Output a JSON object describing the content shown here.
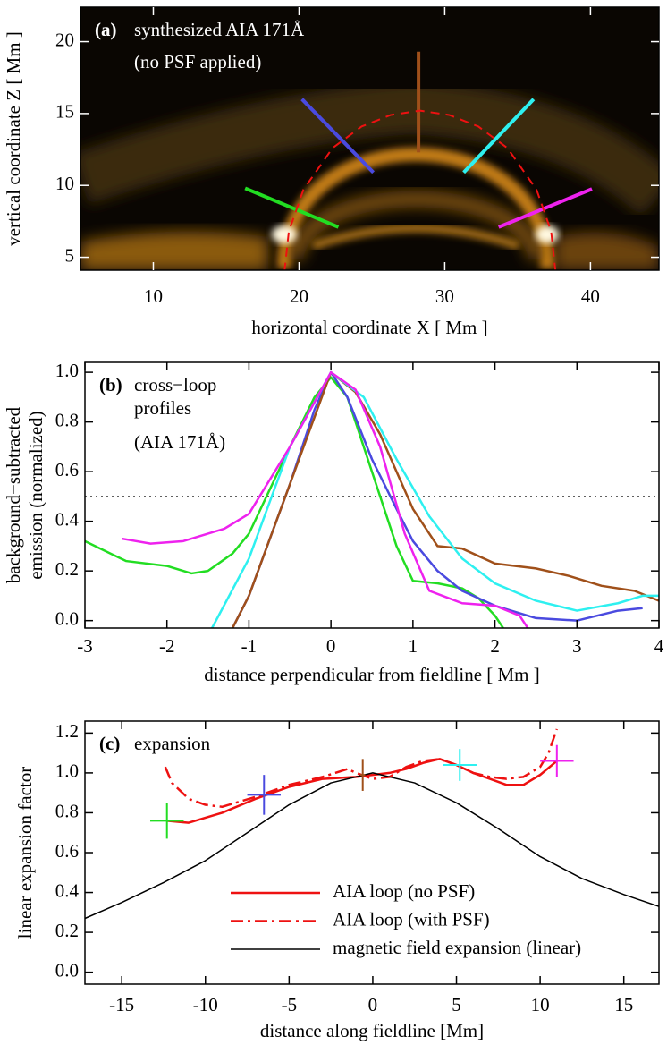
{
  "chart_data": [
    {
      "type": "image",
      "label": "(a)",
      "title": "synthesized AIA 171Å",
      "subtitle": "(no PSF applied)",
      "xlabel": "horizontal coordinate  X  [ Mm ]",
      "ylabel": "vertical coordinate  Z  [ Mm ]",
      "xlim": [
        5,
        44.7
      ],
      "ylim": [
        4.1,
        22.4
      ],
      "xticks": [
        10,
        20,
        30,
        40
      ],
      "yticks": [
        5,
        10,
        15,
        20
      ],
      "loop": {
        "color": "#ee1111",
        "style": "dashed",
        "x": [
          19.0,
          19.3,
          20.3,
          22.3,
          24.3,
          26.3,
          28.3,
          30.3,
          32.3,
          34.3,
          36.3,
          37.3,
          37.6
        ],
        "y": [
          4.0,
          6.8,
          9.7,
          12.6,
          14.1,
          14.9,
          15.2,
          14.9,
          14.1,
          12.6,
          9.7,
          6.8,
          4.0
        ]
      },
      "cuts": [
        {
          "color": "#22dd22",
          "x": [
            16.3,
            22.7
          ],
          "y": [
            9.8,
            7.1
          ]
        },
        {
          "color": "#4a4adf",
          "x": [
            20.2,
            25.1
          ],
          "y": [
            16.0,
            10.9
          ]
        },
        {
          "color": "#a0501a",
          "x": [
            28.2,
            28.2
          ],
          "y": [
            19.3,
            12.3
          ]
        },
        {
          "color": "#2ef0f0",
          "x": [
            36.1,
            31.3
          ],
          "y": [
            16.0,
            10.9
          ]
        },
        {
          "color": "#ee22ee",
          "x": [
            33.7,
            40.1
          ],
          "y": [
            7.1,
            9.75
          ]
        }
      ]
    },
    {
      "type": "line",
      "label": "(b)",
      "title": [
        "cross−loop",
        "profiles",
        "(AIA 171Å)"
      ],
      "xlabel": "distance perpendicular from fieldline  [ Mm ]",
      "ylabel": [
        "background−subtracted",
        "emission (normalized)"
      ],
      "xlim": [
        -3,
        4
      ],
      "ylim": [
        -0.03,
        1.04
      ],
      "xticks": [
        -3,
        -2,
        -1,
        0,
        1,
        2,
        3,
        4
      ],
      "yticks": [
        {
          "value": 0,
          "label": "0.0"
        },
        {
          "value": 0.2,
          "label": "0.2"
        },
        {
          "value": 0.4,
          "label": "0.4"
        },
        {
          "value": 0.6,
          "label": "0.6"
        },
        {
          "value": 0.8,
          "label": "0.8"
        },
        {
          "value": 1,
          "label": "1.0"
        }
      ],
      "hline": 0.5,
      "hline_style": "dotted",
      "series": [
        {
          "color": "#22dd22",
          "style": "solid",
          "x": [
            -3,
            -2.5,
            -2,
            -1.7,
            -1.5,
            -1.2,
            -1,
            -0.5,
            -0.2,
            0,
            0.2,
            0.5,
            0.8,
            1,
            1.3,
            1.6,
            1.8,
            2,
            2.1
          ],
          "values": [
            0.32,
            0.24,
            0.22,
            0.19,
            0.2,
            0.27,
            0.35,
            0.7,
            0.9,
            0.98,
            0.9,
            0.6,
            0.3,
            0.16,
            0.15,
            0.13,
            0.09,
            0.02,
            -0.03
          ]
        },
        {
          "color": "#4a4adf",
          "style": "solid",
          "x": [
            -1.2,
            -1,
            -0.5,
            -0.2,
            0,
            0.2,
            0.5,
            0.8,
            1,
            1.3,
            1.6,
            2,
            2.5,
            3,
            3.5,
            3.8
          ],
          "values": [
            -0.03,
            0.1,
            0.55,
            0.85,
            1.0,
            0.9,
            0.65,
            0.45,
            0.32,
            0.2,
            0.12,
            0.06,
            0.01,
            0.0,
            0.04,
            0.05
          ]
        },
        {
          "color": "#a0501a",
          "style": "solid",
          "x": [
            -1.2,
            -1,
            -0.5,
            0,
            0.3,
            0.6,
            1,
            1.3,
            1.6,
            2,
            2.5,
            2.9,
            3.3,
            3.7,
            4
          ],
          "values": [
            -0.03,
            0.1,
            0.55,
            1.0,
            0.92,
            0.75,
            0.45,
            0.3,
            0.29,
            0.23,
            0.21,
            0.18,
            0.14,
            0.12,
            0.08
          ]
        },
        {
          "color": "#2ef0f0",
          "style": "solid",
          "x": [
            -1.45,
            -1,
            -0.5,
            0,
            0.4,
            0.8,
            1.2,
            1.6,
            2,
            2.5,
            3,
            3.5,
            3.8,
            4
          ],
          "values": [
            -0.03,
            0.25,
            0.7,
            1.0,
            0.9,
            0.65,
            0.42,
            0.25,
            0.15,
            0.08,
            0.04,
            0.07,
            0.1,
            0.1
          ]
        },
        {
          "color": "#ee22ee",
          "style": "solid",
          "x": [
            -2.55,
            -2.2,
            -1.8,
            -1.3,
            -1,
            -0.5,
            0,
            0.3,
            0.6,
            0.9,
            1.2,
            1.6,
            2,
            2.3,
            2.4
          ],
          "values": [
            0.33,
            0.31,
            0.32,
            0.37,
            0.43,
            0.7,
            1.0,
            0.93,
            0.7,
            0.35,
            0.12,
            0.07,
            0.06,
            0.02,
            -0.03
          ]
        }
      ]
    },
    {
      "type": "line",
      "label": "(c)",
      "title": [
        "expansion"
      ],
      "xlabel": "distance along fieldline  [Mm]",
      "ylabel": [
        "linear expansion factor"
      ],
      "xlim": [
        -17.2,
        17.1
      ],
      "ylim": [
        -0.06,
        1.26
      ],
      "xticks": [
        -15,
        -10,
        -5,
        0,
        5,
        10,
        15
      ],
      "yticks": [
        {
          "value": 0,
          "label": "0.0"
        },
        {
          "value": 0.2,
          "label": "0.2"
        },
        {
          "value": 0.4,
          "label": "0.4"
        },
        {
          "value": 0.6,
          "label": "0.6"
        },
        {
          "value": 0.8,
          "label": "0.8"
        },
        {
          "value": 1,
          "label": "1.0"
        },
        {
          "value": 1.2,
          "label": "1.2"
        }
      ],
      "legend": "lower center",
      "series": [
        {
          "name": "AIA loop (no PSF)",
          "color": "#ee1111",
          "style": "solid",
          "x": [
            -12.3,
            -11,
            -9,
            -7,
            -5,
            -3,
            -1,
            0,
            1,
            2,
            3,
            4,
            5,
            6,
            7,
            8,
            9,
            10,
            11
          ],
          "values": [
            0.76,
            0.75,
            0.8,
            0.87,
            0.93,
            0.97,
            0.98,
            0.99,
            1.0,
            1.02,
            1.05,
            1.07,
            1.04,
            1.0,
            0.97,
            0.94,
            0.94,
            0.99,
            1.06
          ]
        },
        {
          "name": "AIA loop (with PSF)",
          "color": "#ee1111",
          "style": "dashdot",
          "x": [
            -12.4,
            -12,
            -11,
            -10,
            -9,
            -7,
            -5,
            -3,
            -1.5,
            -1,
            0,
            1,
            2,
            3,
            4,
            5,
            6,
            7,
            8,
            9,
            10,
            10.5,
            11
          ],
          "values": [
            1.03,
            0.95,
            0.87,
            0.84,
            0.83,
            0.88,
            0.94,
            0.98,
            1.02,
            1.0,
            0.97,
            0.98,
            1.03,
            1.06,
            1.07,
            1.04,
            1.0,
            0.98,
            0.97,
            0.98,
            1.03,
            1.1,
            1.22
          ]
        },
        {
          "name": "magnetic field expansion (linear)",
          "color": "#000000",
          "style": "thin",
          "x": [
            -17.2,
            -15,
            -12.5,
            -10,
            -7.5,
            -5,
            -2.5,
            0,
            2.5,
            5,
            7.5,
            10,
            12.5,
            15,
            17.1
          ],
          "values": [
            0.27,
            0.35,
            0.45,
            0.56,
            0.7,
            0.84,
            0.95,
            1.0,
            0.95,
            0.85,
            0.72,
            0.58,
            0.47,
            0.39,
            0.33
          ]
        }
      ],
      "markers": [
        {
          "color": "#22dd22",
          "x": -12.3,
          "y": 0.76,
          "xerr": 1,
          "yerr": 0.09
        },
        {
          "color": "#4a4adf",
          "x": -6.5,
          "y": 0.89,
          "xerr": 1,
          "yerr": 0.1
        },
        {
          "color": "#a0501a",
          "x": -0.6,
          "y": 0.99,
          "xerr": 0.15,
          "yerr": 0.08
        },
        {
          "color": "#2ef0f0",
          "x": 5.2,
          "y": 1.04,
          "xerr": 1,
          "yerr": 0.08
        },
        {
          "color": "#ee22ee",
          "x": 11,
          "y": 1.06,
          "xerr": 1,
          "yerr": 0.08
        }
      ]
    }
  ]
}
